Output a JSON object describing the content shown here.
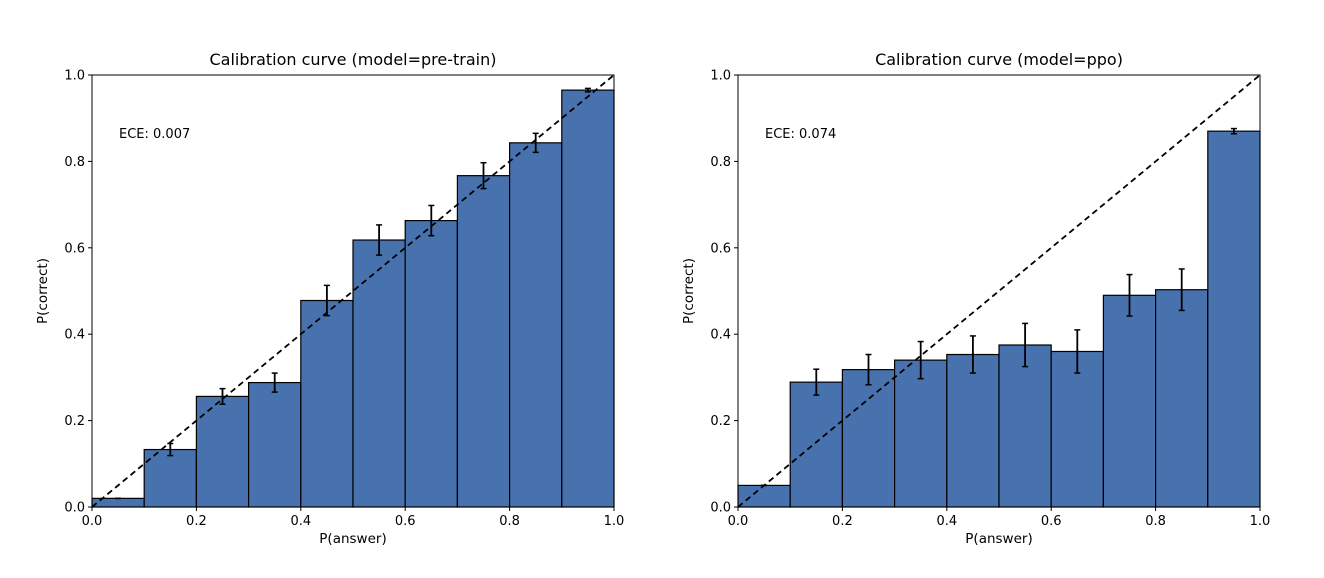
{
  "chart_data": [
    {
      "type": "bar",
      "title": "Calibration curve (model=pre-train)",
      "xlabel": "P(answer)",
      "ylabel": "P(correct)",
      "annotation": "ECE: 0.007",
      "xlim": [
        0,
        1
      ],
      "ylim": [
        0,
        1
      ],
      "xticks": [
        "0.0",
        "0.2",
        "0.4",
        "0.6",
        "0.8",
        "1.0"
      ],
      "yticks": [
        "0.0",
        "0.2",
        "0.4",
        "0.6",
        "0.8",
        "1.0"
      ],
      "bin_edges": [
        0.0,
        0.1,
        0.2,
        0.3,
        0.4,
        0.5,
        0.6,
        0.7,
        0.8,
        0.9,
        1.0
      ],
      "bin_centers": [
        0.05,
        0.15,
        0.25,
        0.35,
        0.45,
        0.55,
        0.65,
        0.75,
        0.85,
        0.95
      ],
      "values": [
        0.02,
        0.133,
        0.256,
        0.288,
        0.478,
        0.618,
        0.663,
        0.767,
        0.843,
        0.965
      ],
      "error": [
        0.0,
        0.014,
        0.018,
        0.022,
        0.035,
        0.035,
        0.035,
        0.03,
        0.022,
        0.004
      ],
      "reference_line": "y = x (dashed)"
    },
    {
      "type": "bar",
      "title": "Calibration curve (model=ppo)",
      "xlabel": "P(answer)",
      "ylabel": "P(correct)",
      "annotation": "ECE: 0.074",
      "xlim": [
        0,
        1
      ],
      "ylim": [
        0,
        1
      ],
      "xticks": [
        "0.0",
        "0.2",
        "0.4",
        "0.6",
        "0.8",
        "1.0"
      ],
      "yticks": [
        "0.0",
        "0.2",
        "0.4",
        "0.6",
        "0.8",
        "1.0"
      ],
      "bin_edges": [
        0.0,
        0.1,
        0.2,
        0.3,
        0.4,
        0.5,
        0.6,
        0.7,
        0.8,
        0.9,
        1.0
      ],
      "bin_centers": [
        0.05,
        0.15,
        0.25,
        0.35,
        0.45,
        0.55,
        0.65,
        0.75,
        0.85,
        0.95
      ],
      "values": [
        0.05,
        0.289,
        0.318,
        0.34,
        0.353,
        0.375,
        0.36,
        0.49,
        0.503,
        0.87
      ],
      "error": [
        0.0,
        0.03,
        0.035,
        0.043,
        0.043,
        0.05,
        0.05,
        0.048,
        0.048,
        0.006
      ],
      "reference_line": "y = x (dashed)"
    }
  ],
  "colors": {
    "bar_fill": "#4872ae",
    "bar_edge": "#000000",
    "axes": "#000000",
    "reference_line": "#000000",
    "background": "#ffffff"
  }
}
